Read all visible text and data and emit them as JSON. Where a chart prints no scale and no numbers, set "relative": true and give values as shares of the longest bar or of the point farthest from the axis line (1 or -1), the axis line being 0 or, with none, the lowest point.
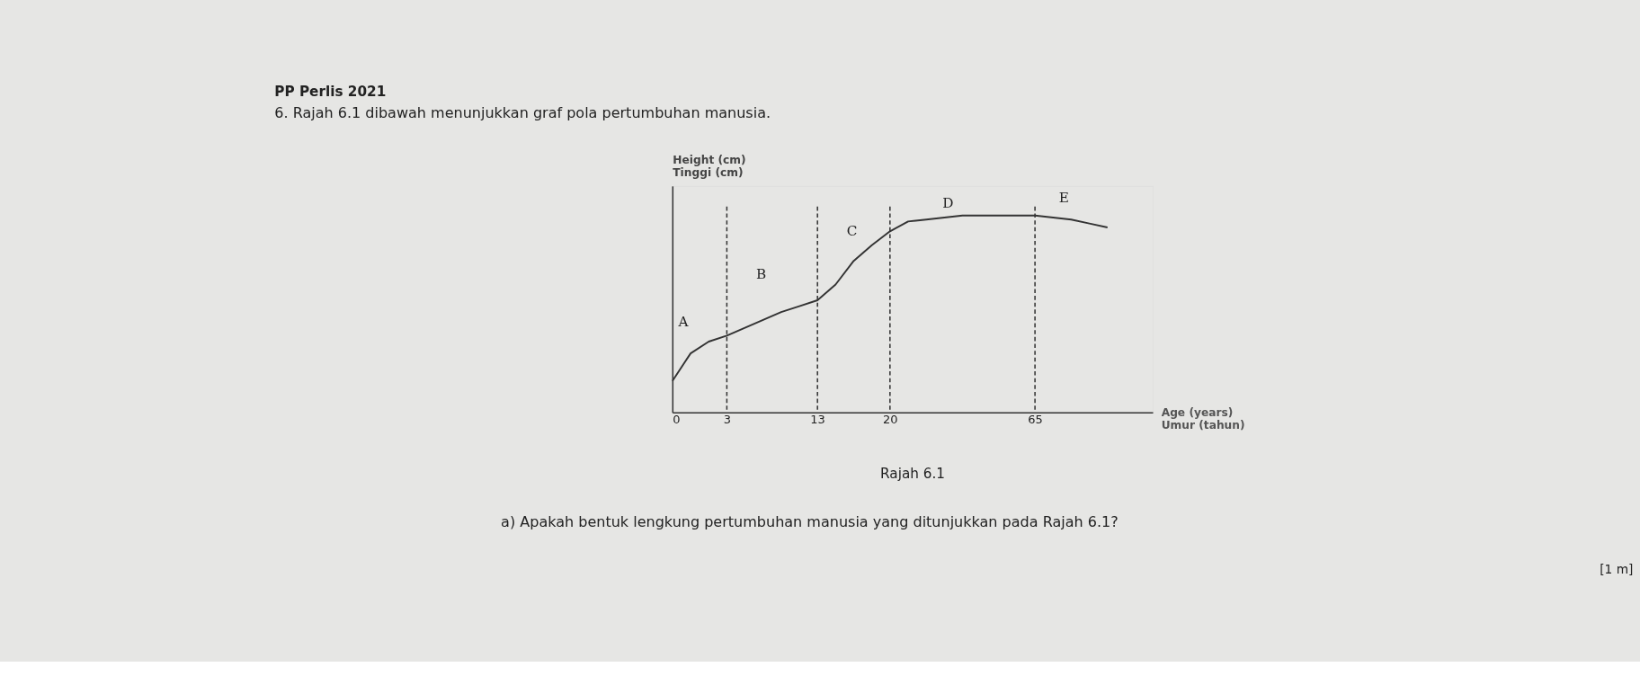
{
  "chart_data": {
    "type": "line",
    "title": "PP Perlis 2021",
    "subtitle": "6.    Rajah 6.1 dibawah menunjukkan graf pola pertumbuhan manusia.",
    "ylabel": "Height (cm)\nTinggi (cm)",
    "xlabel": "Age (years)\nUmur (tahun)",
    "relative": true,
    "categories": [
      "0",
      null,
      null,
      "3",
      null,
      null,
      null,
      null,
      "13",
      null,
      null,
      null,
      "20",
      null,
      null,
      null,
      null,
      null,
      null,
      null,
      "65",
      null,
      null,
      null,
      null
    ],
    "series": [
      {
        "color": "#333333",
        "values": [
          0.16,
          0.3,
          0.36,
          0.39,
          0.43,
          0.47,
          0.51,
          0.54,
          0.57,
          0.65,
          0.77,
          0.85,
          0.92,
          0.97,
          0.98,
          0.99,
          1.0,
          1.0,
          1.0,
          1.0,
          1.0,
          0.99,
          0.98,
          0.96,
          0.94
        ]
      }
    ],
    "grid": false,
    "marker": "none",
    "line_style": "solid",
    "ref_lines": [
      {
        "axis": "x",
        "value": "3",
        "color": "#333333",
        "line_style": "dashed"
      },
      {
        "axis": "x",
        "value": "13",
        "color": "#333333",
        "line_style": "dashed"
      },
      {
        "axis": "x",
        "value": "20",
        "color": "#333333",
        "line_style": "dashed"
      },
      {
        "axis": "x",
        "value": "65",
        "color": "#333333",
        "line_style": "dashed"
      }
    ],
    "annotations": [
      "A",
      "B",
      "C",
      "D",
      "E",
      "Rajah 6.1",
      "a)   Apakah bentuk lengkung pertumbuhan manusia yang ditunjukkan pada Rajah 6.1?",
      "[1 m]"
    ]
  }
}
